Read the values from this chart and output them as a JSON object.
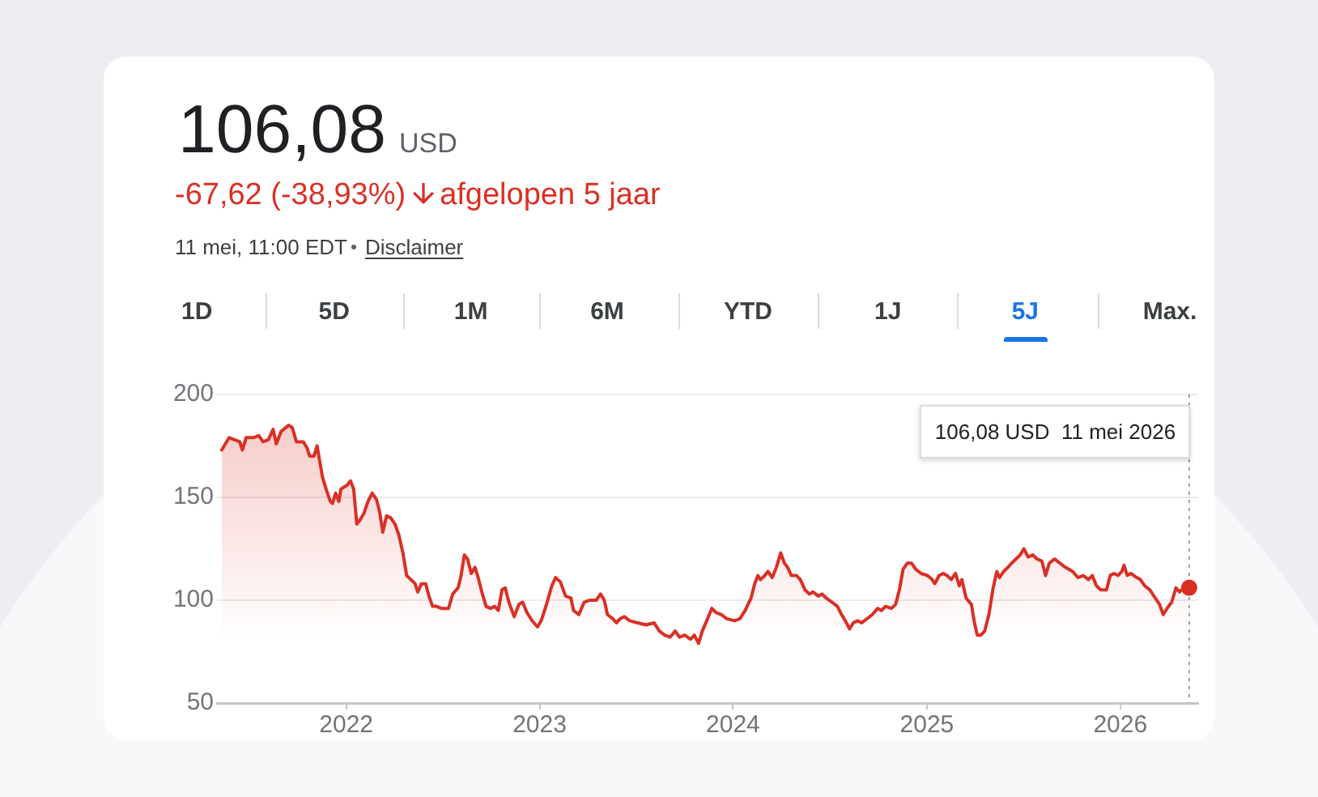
{
  "chart_data": {
    "type": "area",
    "title": "106,08",
    "annotations": [
      "USD",
      "-67,62 (-38,93%)",
      "afgelopen 5 jaar",
      "11 mei, 11:00 EDT",
      "Disclaimer",
      "1D",
      "5D",
      "1M",
      "6M",
      "YTD",
      "1J",
      "5J",
      "Max.",
      "106,08 USD  11 mei 2026"
    ],
    "x": [
      "2021-05-11",
      "2021-05-25",
      "2021-06-04",
      "2021-06-14",
      "2021-06-19",
      "2021-06-26",
      "2021-07-10",
      "2021-07-20",
      "2021-07-28",
      "2021-08-07",
      "2021-08-16",
      "2021-08-22",
      "2021-08-31",
      "2021-09-14",
      "2021-09-21",
      "2021-09-29",
      "2021-10-12",
      "2021-10-19",
      "2021-10-24",
      "2021-11-01",
      "2021-11-07",
      "2021-11-11",
      "2021-11-17",
      "2021-11-24",
      "2021-12-02",
      "2021-12-06",
      "2021-12-12",
      "2021-12-18",
      "2021-12-22",
      "2022-01-03",
      "2022-01-09",
      "2022-01-15",
      "2022-01-21",
      "2022-01-27",
      "2022-02-03",
      "2022-02-11",
      "2022-02-19",
      "2022-02-27",
      "2022-03-05",
      "2022-03-11",
      "2022-03-18",
      "2022-03-26",
      "2022-04-03",
      "2022-04-10",
      "2022-04-18",
      "2022-04-25",
      "2022-05-03",
      "2022-05-11",
      "2022-05-16",
      "2022-05-23",
      "2022-05-31",
      "2022-06-06",
      "2022-06-13",
      "2022-06-20",
      "2022-06-30",
      "2022-07-13",
      "2022-07-21",
      "2022-07-31",
      "2022-08-05",
      "2022-08-12",
      "2022-08-18",
      "2022-08-25",
      "2022-09-01",
      "2022-09-07",
      "2022-09-15",
      "2022-09-22",
      "2022-09-30",
      "2022-10-08",
      "2022-10-15",
      "2022-10-22",
      "2022-10-28",
      "2022-11-04",
      "2022-11-14",
      "2022-11-23",
      "2022-11-30",
      "2022-12-08",
      "2022-12-18",
      "2022-12-28",
      "2023-01-04",
      "2023-01-14",
      "2023-01-24",
      "2023-01-31",
      "2023-02-09",
      "2023-02-19",
      "2023-03-01",
      "2023-03-06",
      "2023-03-16",
      "2023-03-26",
      "2023-04-05",
      "2023-04-18",
      "2023-04-26",
      "2023-05-03",
      "2023-05-09",
      "2023-05-19",
      "2023-05-26",
      "2023-06-02",
      "2023-06-10",
      "2023-06-20",
      "2023-07-05",
      "2023-07-21",
      "2023-08-05",
      "2023-08-15",
      "2023-08-25",
      "2023-09-04",
      "2023-09-14",
      "2023-09-22",
      "2023-10-02",
      "2023-10-13",
      "2023-10-20",
      "2023-10-28",
      "2023-11-04",
      "2023-11-14",
      "2023-11-22",
      "2023-11-30",
      "2023-12-10",
      "2023-12-20",
      "2024-01-04",
      "2024-01-14",
      "2024-01-24",
      "2024-02-04",
      "2024-02-11",
      "2024-02-17",
      "2024-02-22",
      "2024-03-01",
      "2024-03-07",
      "2024-03-15",
      "2024-03-23",
      "2024-03-31",
      "2024-04-07",
      "2024-04-13",
      "2024-04-20",
      "2024-04-30",
      "2024-05-07",
      "2024-05-16",
      "2024-05-24",
      "2024-05-31",
      "2024-06-10",
      "2024-06-17",
      "2024-06-25",
      "2024-07-06",
      "2024-07-16",
      "2024-07-24",
      "2024-07-31",
      "2024-08-08",
      "2024-08-15",
      "2024-08-23",
      "2024-08-31",
      "2024-09-10",
      "2024-09-20",
      "2024-09-30",
      "2024-10-07",
      "2024-10-15",
      "2024-10-26",
      "2024-11-03",
      "2024-11-10",
      "2024-11-17",
      "2024-11-25",
      "2024-12-03",
      "2024-12-11",
      "2024-12-21",
      "2025-01-02",
      "2025-01-11",
      "2025-01-16",
      "2025-01-24",
      "2025-02-01",
      "2025-02-08",
      "2025-02-16",
      "2025-02-24",
      "2025-03-03",
      "2025-03-08",
      "2025-03-16",
      "2025-03-26",
      "2025-03-31",
      "2025-04-06",
      "2025-04-13",
      "2025-04-20",
      "2025-04-28",
      "2025-05-06",
      "2025-05-13",
      "2025-05-18",
      "2025-05-26",
      "2025-06-03",
      "2025-06-10",
      "2025-06-18",
      "2025-06-26",
      "2025-07-03",
      "2025-07-11",
      "2025-07-20",
      "2025-07-28",
      "2025-08-06",
      "2025-08-13",
      "2025-08-20",
      "2025-08-30",
      "2025-09-09",
      "2025-09-19",
      "2025-10-03",
      "2025-10-13",
      "2025-10-23",
      "2025-11-02",
      "2025-11-09",
      "2025-11-17",
      "2025-11-25",
      "2025-12-06",
      "2025-12-13",
      "2025-12-20",
      "2025-12-28",
      "2026-01-04",
      "2026-01-08",
      "2026-01-14",
      "2026-01-21",
      "2026-02-01",
      "2026-02-08",
      "2026-02-16",
      "2026-02-26",
      "2026-03-08",
      "2026-03-16",
      "2026-03-23",
      "2026-03-30",
      "2026-04-08",
      "2026-04-16",
      "2026-04-23",
      "2026-04-30",
      "2026-05-05",
      "2026-05-11"
    ],
    "series": [
      {
        "color": "#d93025",
        "values": [
          173,
          179,
          178,
          177,
          173,
          179,
          179,
          180,
          177,
          178,
          183,
          176,
          182,
          185,
          184,
          177,
          177,
          174,
          170,
          170,
          175,
          169,
          160,
          154,
          148,
          147,
          152,
          148,
          154,
          156,
          158,
          154,
          137,
          139,
          142,
          148,
          152,
          149,
          143,
          133,
          141,
          140,
          137,
          132,
          123,
          112,
          110,
          108,
          104,
          108,
          108,
          102,
          97,
          97,
          96,
          96,
          103,
          106,
          111,
          122,
          120,
          113,
          116,
          111,
          103,
          97,
          96,
          97,
          95,
          105,
          106,
          99,
          92,
          98,
          99,
          94,
          90,
          87,
          90,
          98,
          107,
          111,
          109,
          102,
          101,
          95,
          93,
          99,
          100,
          100,
          103,
          100,
          93,
          91,
          89,
          91,
          92,
          90,
          89,
          88,
          89,
          85,
          83,
          82,
          85,
          82,
          83,
          81,
          83,
          79,
          85,
          91,
          96,
          94,
          93,
          91,
          90,
          91,
          95,
          101,
          108,
          112,
          110,
          112,
          114,
          111,
          116,
          123,
          118,
          116,
          112,
          112,
          110,
          105,
          103,
          104,
          102,
          103,
          101,
          99,
          97,
          93,
          90,
          86,
          89,
          90,
          89,
          91,
          93,
          96,
          95,
          97,
          96,
          98,
          105,
          115,
          118,
          118,
          115,
          113,
          112,
          110,
          108,
          112,
          113,
          112,
          110,
          113,
          107,
          110,
          101,
          98,
          90,
          83,
          83,
          85,
          93,
          106,
          114,
          111,
          114,
          116,
          118,
          120,
          122,
          125,
          121,
          122,
          120,
          119,
          112,
          118,
          120,
          118,
          116,
          114,
          111,
          112,
          110,
          112,
          107,
          105,
          105,
          112,
          113,
          112,
          114,
          117,
          112,
          113,
          111,
          110,
          107,
          105,
          101,
          98,
          93,
          96,
          99,
          106,
          104,
          106,
          106,
          106.08
        ]
      },
      {
        "type": "scatter",
        "color": "#d93025",
        "marker": "circle",
        "x": [
          "2026-05-11"
        ],
        "values": [
          106.08
        ]
      }
    ],
    "marker": "none",
    "xlim": [
      "2021-05-02",
      "2026-05-28"
    ],
    "xticks": [
      "2022",
      "2023",
      "2024",
      "2025",
      "2026"
    ],
    "ylim": [
      50,
      200
    ],
    "yticks": [
      50,
      100,
      150,
      200
    ],
    "grid": "y",
    "ref_lines": [
      {
        "axis": "x",
        "value": "2026-05-11",
        "color": "#9aa0a6",
        "line_style": "dotted"
      }
    ]
  }
}
